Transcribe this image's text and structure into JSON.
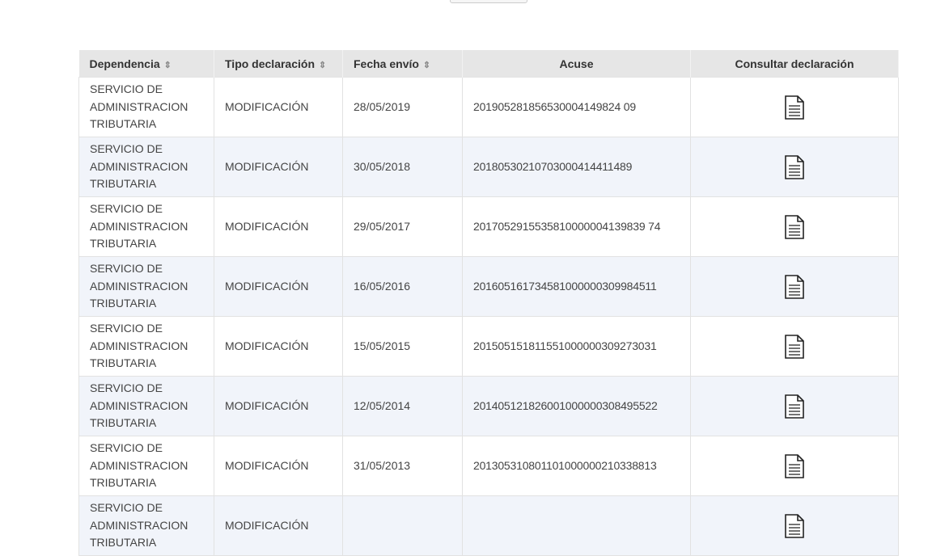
{
  "table": {
    "headers": [
      {
        "label": "Dependencia",
        "sortable": true
      },
      {
        "label": "Tipo declaración",
        "sortable": true
      },
      {
        "label": "Fecha envío",
        "sortable": true
      },
      {
        "label": "Acuse",
        "sortable": false
      },
      {
        "label": "Consultar declaración",
        "sortable": false
      }
    ],
    "sort_icon": "⇳",
    "rows": [
      {
        "dependencia": "SERVICIO DE ADMINISTRACION TRIBUTARIA",
        "tipo": "MODIFICACIÓN",
        "fecha": "28/05/2019",
        "acuse": "201905281856530004149824 09",
        "icon": "document-icon"
      },
      {
        "dependencia": "SERVICIO DE ADMINISTRACION TRIBUTARIA",
        "tipo": "MODIFICACIÓN",
        "fecha": "30/05/2018",
        "acuse": "20180530210703000414411489",
        "icon": "document-icon"
      },
      {
        "dependencia": "SERVICIO DE ADMINISTRACION TRIBUTARIA",
        "tipo": "MODIFICACIÓN",
        "fecha": "29/05/2017",
        "acuse": "2017052915535810000004139839 74",
        "icon": "document-icon"
      },
      {
        "dependencia": "SERVICIO DE ADMINISTRACION TRIBUTARIA",
        "tipo": "MODIFICACIÓN",
        "fecha": "16/05/2016",
        "acuse": "201605161734581000000309984511",
        "icon": "document-icon"
      },
      {
        "dependencia": "SERVICIO DE ADMINISTRACION TRIBUTARIA",
        "tipo": "MODIFICACIÓN",
        "fecha": "15/05/2015",
        "acuse": "201505151811551000000309273031",
        "icon": "document-icon"
      },
      {
        "dependencia": "SERVICIO DE ADMINISTRACION TRIBUTARIA",
        "tipo": "MODIFICACIÓN",
        "fecha": "12/05/2014",
        "acuse": "201405121826001000000308495522",
        "icon": "document-icon"
      },
      {
        "dependencia": "SERVICIO DE ADMINISTRACION TRIBUTARIA",
        "tipo": "MODIFICACIÓN",
        "fecha": "31/05/2013",
        "acuse": "201305310801101000000210338813",
        "icon": "document-icon"
      },
      {
        "dependencia": "SERVICIO DE ADMINISTRACION TRIBUTARIA",
        "tipo": "MODIFICACIÓN",
        "icon": "document-icon"
      }
    ]
  }
}
